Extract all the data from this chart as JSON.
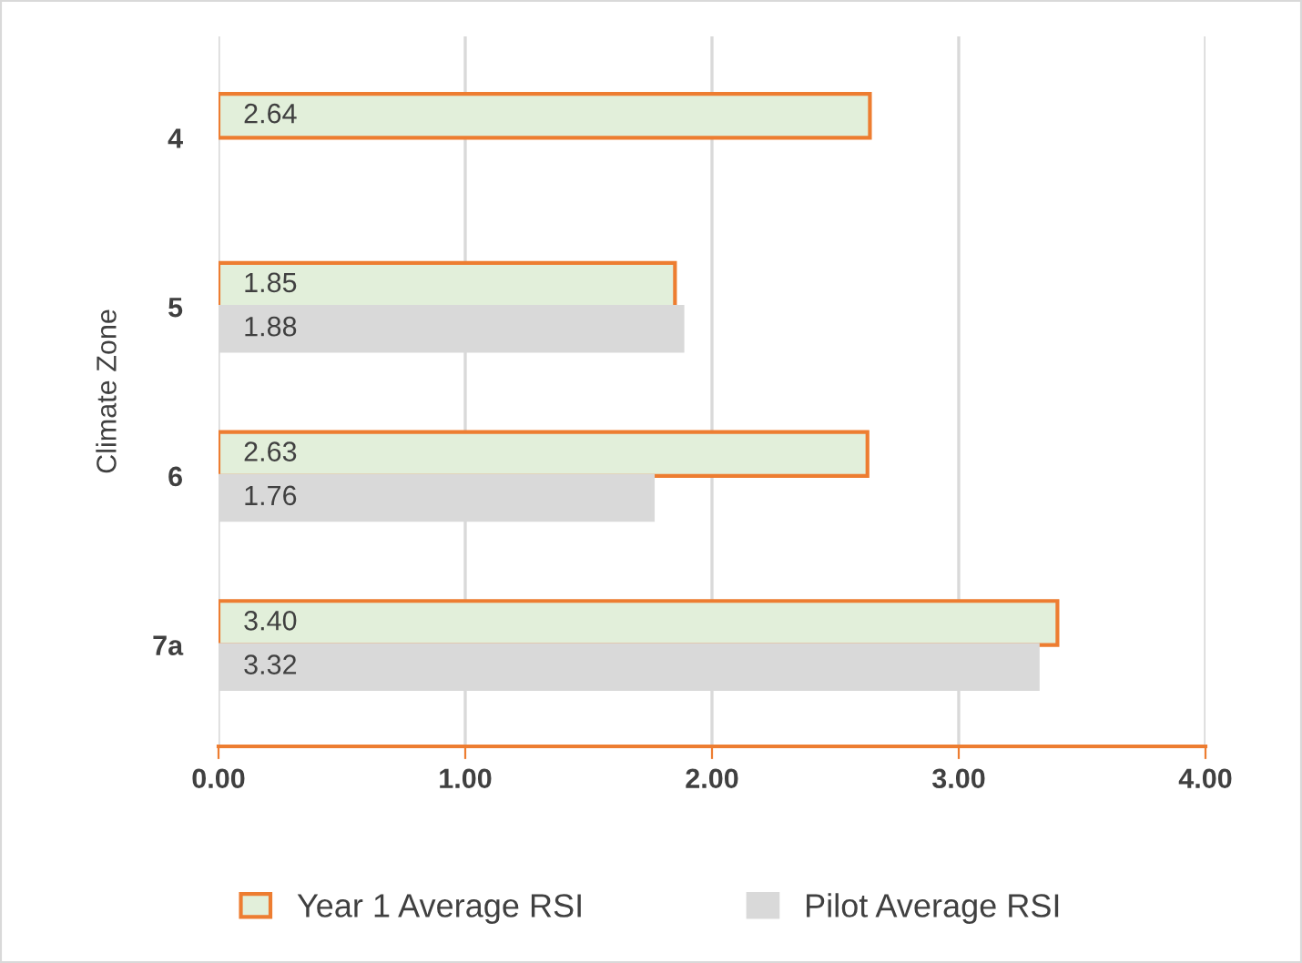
{
  "chart_data": {
    "type": "bar",
    "orientation": "horizontal",
    "ylabel": "Climate Zone",
    "categories": [
      "4",
      "5",
      "6",
      "7a"
    ],
    "series": [
      {
        "name": "Year 1 Average RSI",
        "color": "#e2efda",
        "values": [
          2.64,
          1.85,
          2.63,
          3.4
        ],
        "value_labels": [
          "2.64",
          "1.85",
          "2.63",
          "3.40"
        ]
      },
      {
        "name": "Pilot Average RSI",
        "color": "#d9d9d9",
        "values": [
          null,
          1.88,
          1.76,
          3.32
        ],
        "value_labels": [
          null,
          "1.88",
          "1.76",
          "3.32"
        ]
      }
    ],
    "xlim": [
      0,
      4
    ],
    "xticks": [
      {
        "value": 0,
        "label": "0.00"
      },
      {
        "value": 1,
        "label": "1.00"
      },
      {
        "value": 2,
        "label": "2.00"
      },
      {
        "value": 3,
        "label": "3.00"
      },
      {
        "value": 4,
        "label": "4.00"
      }
    ],
    "grid": "x",
    "legend": "bottom"
  }
}
